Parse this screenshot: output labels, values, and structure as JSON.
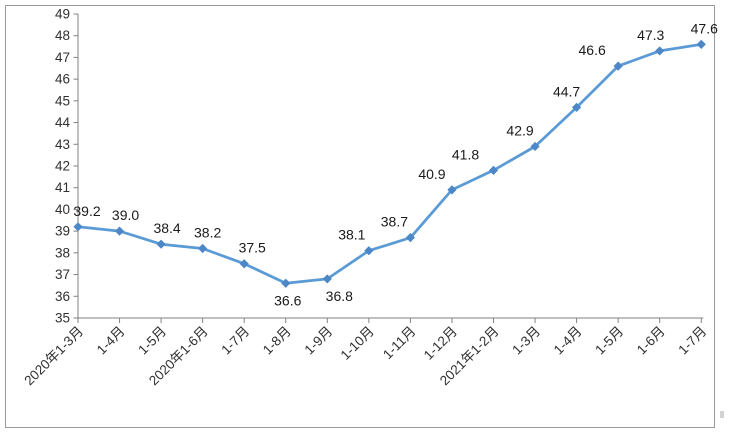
{
  "chart_data": {
    "type": "line",
    "title": "",
    "xlabel": "",
    "ylabel": "",
    "categories": [
      "2020年1-3月",
      "1-4月",
      "1-5月",
      "2020年1-6月",
      "1-7月",
      "1-8月",
      "1-9月",
      "1-10月",
      "1-11月",
      "1-12月",
      "2021年1-2月",
      "1-3月",
      "1-4月",
      "1-5月",
      "1-6月",
      "1-7月"
    ],
    "series": [
      {
        "name": "value",
        "values": [
          39.2,
          39.0,
          38.4,
          38.2,
          37.5,
          36.6,
          36.8,
          38.1,
          38.7,
          40.9,
          41.8,
          42.9,
          44.7,
          46.6,
          47.3,
          47.6
        ],
        "value_labels": [
          "39.2",
          "39.0",
          "38.4",
          "38.2",
          "37.5",
          "36.6",
          "36.8",
          "38.1",
          "38.7",
          "40.9",
          "41.8",
          "42.9",
          "44.7",
          "46.6",
          "47.3",
          "47.6"
        ]
      }
    ],
    "ylim": [
      35,
      49
    ],
    "y_tick_step": 1,
    "y_ticks": [
      35,
      36,
      37,
      38,
      39,
      40,
      41,
      42,
      43,
      44,
      45,
      46,
      47,
      48,
      49
    ],
    "x_label_rotation": -45,
    "grid": "off",
    "legend": "none",
    "marker": "diamond",
    "colors": {
      "line": "#5b9bd5",
      "marker": "#4d87c7",
      "axis": "#828282",
      "tick_text": "#303030",
      "data_label_text": "#1a1a1a",
      "frame_border": "#9b9b9b",
      "background": "#ffffff"
    }
  }
}
